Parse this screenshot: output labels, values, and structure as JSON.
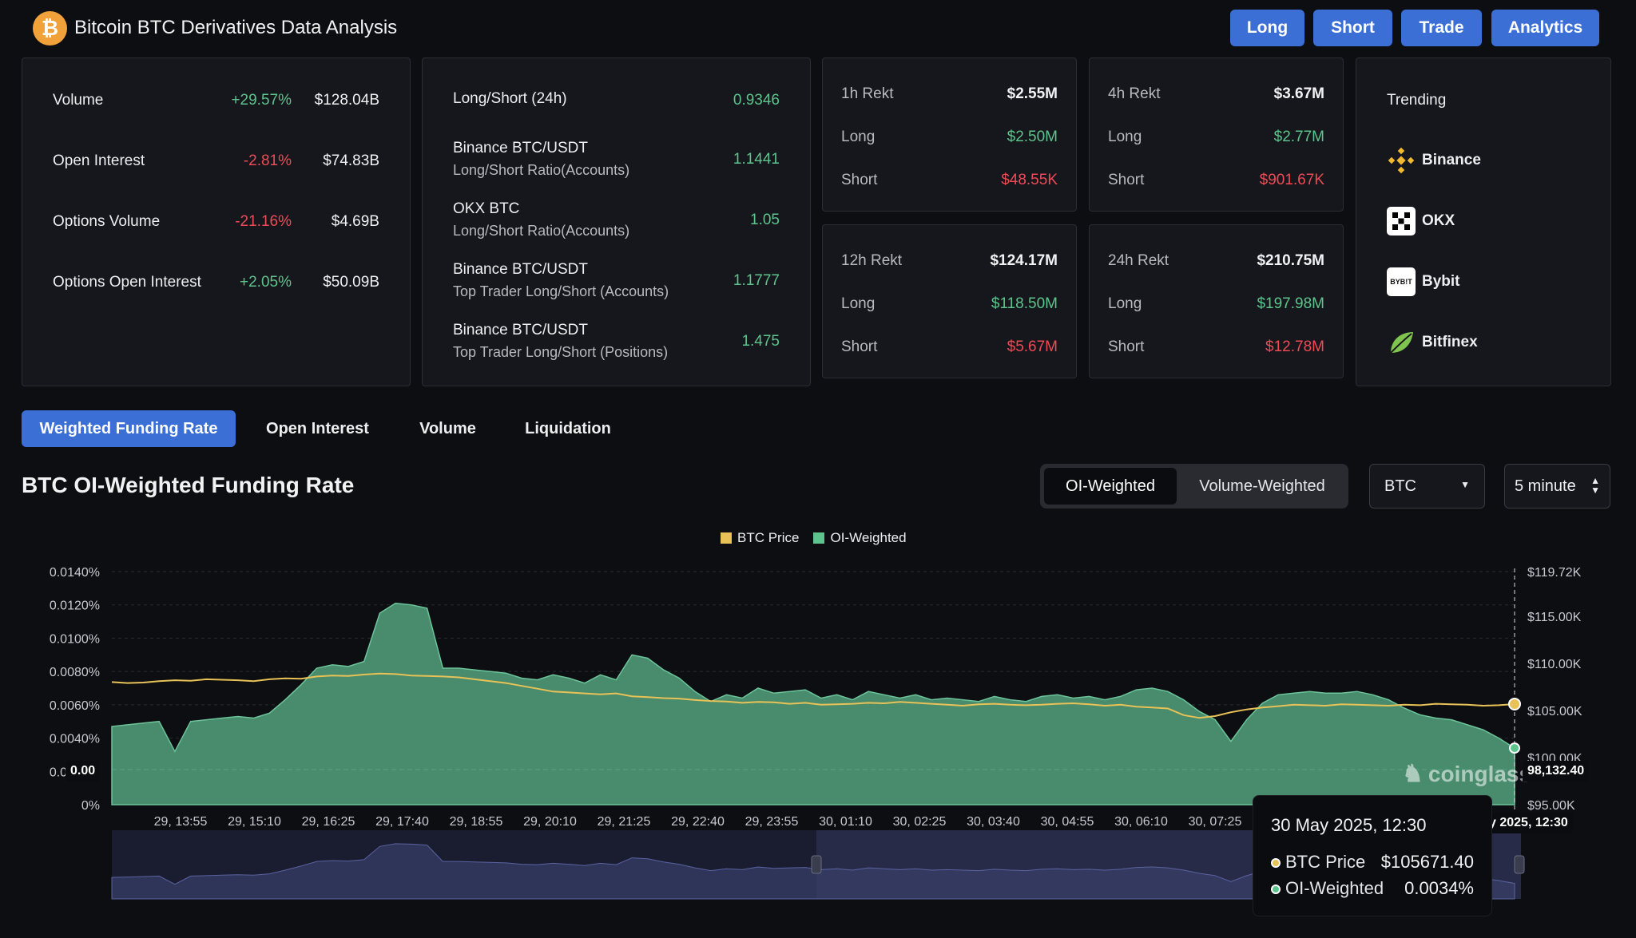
{
  "header": {
    "logo_glyph": "₿",
    "title": "Bitcoin BTC Derivatives Data Analysis",
    "nav": [
      "Long",
      "Short",
      "Trade",
      "Analytics"
    ]
  },
  "market_stats": [
    {
      "label": "Volume",
      "change": "+29.57%",
      "direction": "up",
      "value": "$128.04B"
    },
    {
      "label": "Open Interest",
      "change": "-2.81%",
      "direction": "down",
      "value": "$74.83B"
    },
    {
      "label": "Options Volume",
      "change": "-21.16%",
      "direction": "down",
      "value": "$4.69B"
    },
    {
      "label": "Options Open Interest",
      "change": "+2.05%",
      "direction": "up",
      "value": "$50.09B"
    }
  ],
  "long_short": [
    {
      "title": "Long/Short (24h)",
      "subtitle": "",
      "value": "0.9346"
    },
    {
      "title": "Binance BTC/USDT",
      "subtitle": "Long/Short Ratio(Accounts)",
      "value": "1.1441"
    },
    {
      "title": "OKX BTC",
      "subtitle": "Long/Short Ratio(Accounts)",
      "value": "1.05"
    },
    {
      "title": "Binance BTC/USDT",
      "subtitle": "Top Trader Long/Short (Accounts)",
      "value": "1.1777"
    },
    {
      "title": "Binance BTC/USDT",
      "subtitle": "Top Trader Long/Short (Positions)",
      "value": "1.475"
    }
  ],
  "rekt": [
    {
      "title": "1h Rekt",
      "total": "$2.55M",
      "long_label": "Long",
      "long": "$2.50M",
      "short_label": "Short",
      "short": "$48.55K"
    },
    {
      "title": "4h Rekt",
      "total": "$3.67M",
      "long_label": "Long",
      "long": "$2.77M",
      "short_label": "Short",
      "short": "$901.67K"
    },
    {
      "title": "12h Rekt",
      "total": "$124.17M",
      "long_label": "Long",
      "long": "$118.50M",
      "short_label": "Short",
      "short": "$5.67M"
    },
    {
      "title": "24h Rekt",
      "total": "$210.75M",
      "long_label": "Long",
      "long": "$197.98M",
      "short_label": "Short",
      "short": "$12.78M"
    }
  ],
  "trending": {
    "title": "Trending",
    "items": [
      {
        "name": "Binance",
        "icon": "binance-icon"
      },
      {
        "name": "OKX",
        "icon": "okx-icon"
      },
      {
        "name": "Bybit",
        "icon": "bybit-icon",
        "icon_text": "BYB!T"
      },
      {
        "name": "Bitfinex",
        "icon": "bitfinex-icon"
      }
    ]
  },
  "tabs": [
    {
      "label": "Weighted Funding Rate",
      "active": true
    },
    {
      "label": "Open Interest",
      "active": false
    },
    {
      "label": "Volume",
      "active": false
    },
    {
      "label": "Liquidation",
      "active": false
    }
  ],
  "chart_title": "BTC OI-Weighted Funding Rate",
  "weighting_toggle": {
    "options": [
      "OI-Weighted",
      "Volume-Weighted"
    ],
    "selected": "OI-Weighted"
  },
  "coin_select": {
    "value": "BTC"
  },
  "interval_select": {
    "value": "5 minute"
  },
  "colors": {
    "accent": "#3b6fd6",
    "positive": "#5cc48c",
    "negative": "#ee4a56",
    "price_line": "#e8c157",
    "funding_fill": "#4f9a78"
  },
  "watermark": "coinglass",
  "chart_data": {
    "type": "area",
    "legend": [
      "BTC Price",
      "OI-Weighted"
    ],
    "x_ticks": [
      "29, 13:55",
      "29, 15:10",
      "29, 16:25",
      "29, 17:40",
      "29, 18:55",
      "29, 20:10",
      "29, 21:25",
      "29, 22:40",
      "29, 23:55",
      "30, 01:10",
      "30, 02:25",
      "30, 03:40",
      "30, 04:55",
      "30, 06:10",
      "30, 07:25"
    ],
    "crosshair_x_label": "y 2025, 12:30",
    "left_axis": {
      "ticks": [
        "0.0140%",
        "0.0120%",
        "0.0100%",
        "0.0080%",
        "0.0060%",
        "0.0040%",
        "0.0020%",
        "0%"
      ],
      "ylim": [
        0,
        0.014
      ]
    },
    "right_axis": {
      "ticks": [
        "$119.72K",
        "$115.00K",
        "$110.00K",
        "$105.00K",
        "$100.00K",
        "$95.00K"
      ],
      "ylim": [
        95000,
        119720
      ]
    },
    "zero_line_label": "0.00",
    "right_crosshair_label": "98,132.40",
    "series": [
      {
        "name": "OI-Weighted",
        "axis": "left",
        "values": [
          0.0047,
          0.0048,
          0.0049,
          0.005,
          0.0032,
          0.005,
          0.0051,
          0.0052,
          0.0053,
          0.0052,
          0.0055,
          0.0063,
          0.0072,
          0.0082,
          0.0084,
          0.0083,
          0.0086,
          0.0115,
          0.0121,
          0.012,
          0.0118,
          0.0082,
          0.0082,
          0.0081,
          0.008,
          0.0079,
          0.0076,
          0.0075,
          0.0078,
          0.0076,
          0.0073,
          0.0078,
          0.0075,
          0.009,
          0.0088,
          0.0081,
          0.0076,
          0.0068,
          0.0062,
          0.0066,
          0.0064,
          0.007,
          0.0067,
          0.0068,
          0.0069,
          0.0064,
          0.0066,
          0.0063,
          0.0068,
          0.0066,
          0.0064,
          0.0066,
          0.0063,
          0.0064,
          0.0063,
          0.0062,
          0.0065,
          0.0063,
          0.0062,
          0.0065,
          0.0066,
          0.0064,
          0.0065,
          0.0063,
          0.0065,
          0.0069,
          0.007,
          0.0068,
          0.0063,
          0.0056,
          0.0051,
          0.0038,
          0.0051,
          0.0061,
          0.0066,
          0.0067,
          0.0068,
          0.0067,
          0.0067,
          0.0068,
          0.0066,
          0.0063,
          0.0058,
          0.0054,
          0.0052,
          0.0051,
          0.0048,
          0.0045,
          0.004,
          0.0034
        ]
      },
      {
        "name": "BTC Price",
        "axis": "right",
        "values": [
          108000,
          107900,
          107950,
          108100,
          108200,
          108150,
          108300,
          108250,
          108200,
          108100,
          108300,
          108400,
          108350,
          108600,
          108700,
          108650,
          108800,
          108900,
          108850,
          108700,
          108650,
          108600,
          108500,
          108300,
          108100,
          107900,
          107600,
          107300,
          107000,
          106900,
          106800,
          106700,
          106800,
          106500,
          106400,
          106300,
          106250,
          106100,
          106000,
          105950,
          105800,
          105900,
          105850,
          105700,
          105800,
          105600,
          105650,
          105700,
          105800,
          105750,
          105900,
          105800,
          105700,
          105600,
          105500,
          105650,
          105700,
          105600,
          105550,
          105600,
          105700,
          105750,
          105650,
          105500,
          105600,
          105400,
          105300,
          105200,
          104500,
          104200,
          104400,
          104800,
          105100,
          105300,
          105450,
          105600,
          105550,
          105500,
          105650,
          105600,
          105550,
          105500,
          105600,
          105550,
          105700,
          105650,
          105600,
          105500,
          105550,
          105671
        ]
      }
    ],
    "tooltip": {
      "title": "30 May 2025, 12:30",
      "rows": [
        {
          "name": "BTC Price",
          "value": "$105671.40"
        },
        {
          "name": "OI-Weighted",
          "value": "0.0034%"
        }
      ]
    }
  }
}
